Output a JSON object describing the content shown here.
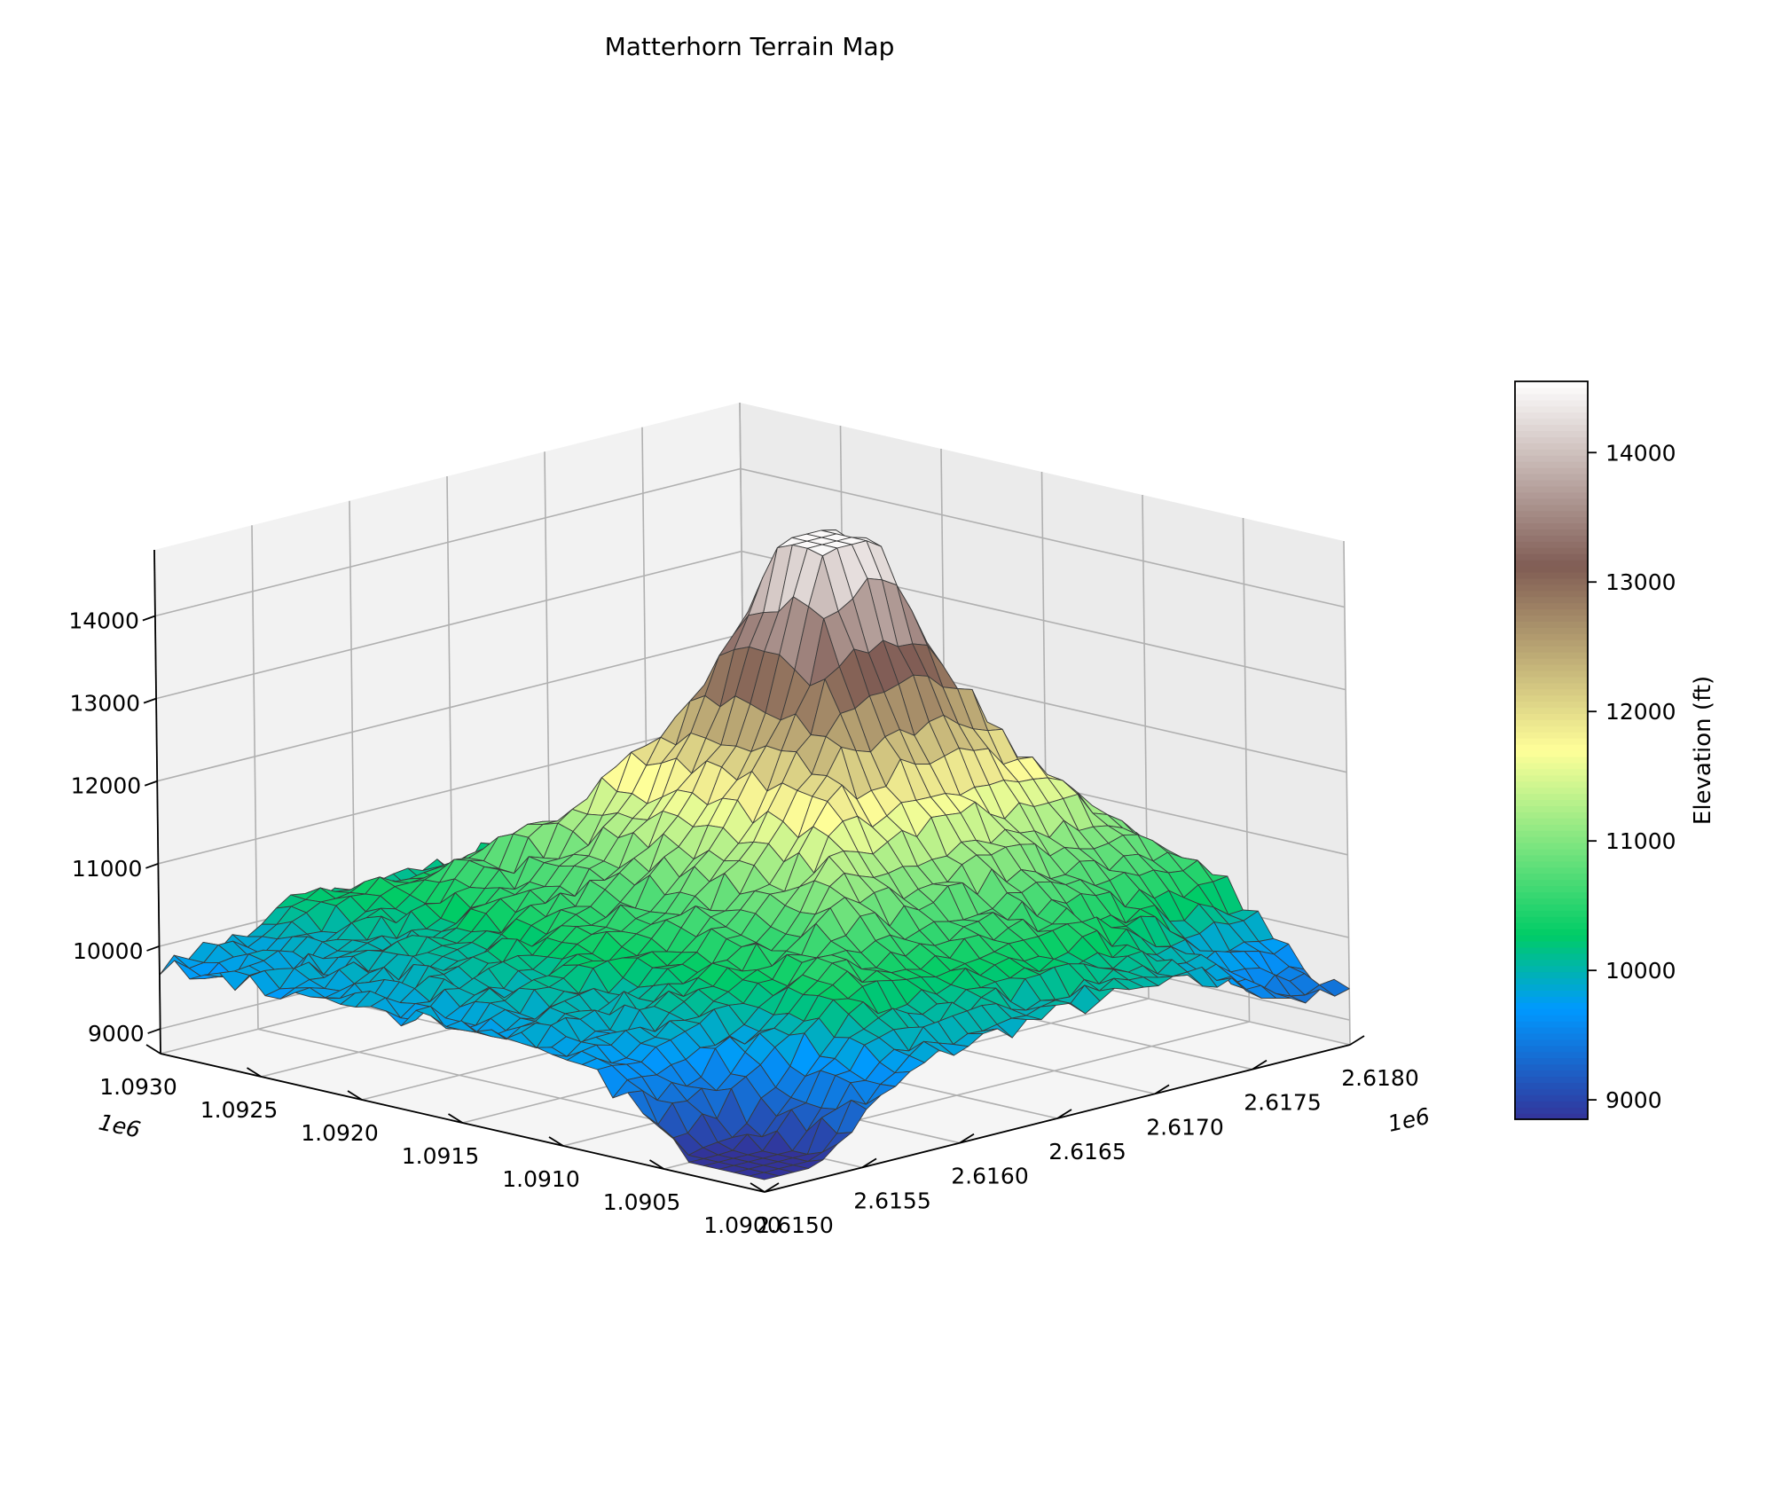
{
  "chart_data": {
    "type": "surface",
    "title": "Matterhorn Terrain Map",
    "colormap": "terrain",
    "x_axis": {
      "ticks": [
        "1.0900",
        "1.0905",
        "1.0910",
        "1.0915",
        "1.0920",
        "1.0925",
        "1.0930"
      ],
      "multiplier": "1e6",
      "range": [
        1090000,
        1093000
      ]
    },
    "y_axis": {
      "ticks": [
        "2.6150",
        "2.6155",
        "2.6160",
        "2.6165",
        "2.6170",
        "2.6175",
        "2.6180"
      ],
      "multiplier": "1e6",
      "range": [
        2615000,
        2618000
      ]
    },
    "z_axis": {
      "ticks": [
        "9000",
        "10000",
        "11000",
        "12000",
        "13000",
        "14000"
      ],
      "range": [
        8700,
        14800
      ]
    },
    "colorbar": {
      "label": "Elevation (ft)",
      "ticks": [
        "9000",
        "10000",
        "11000",
        "12000",
        "13000",
        "14000"
      ],
      "range": [
        8850,
        14550
      ]
    },
    "surface": {
      "grid_size": 40,
      "peak": {
        "x": 1091380,
        "y": 2615980,
        "z": 14500
      },
      "min_z": 8850,
      "base_z": 9600,
      "grid": false
    }
  }
}
